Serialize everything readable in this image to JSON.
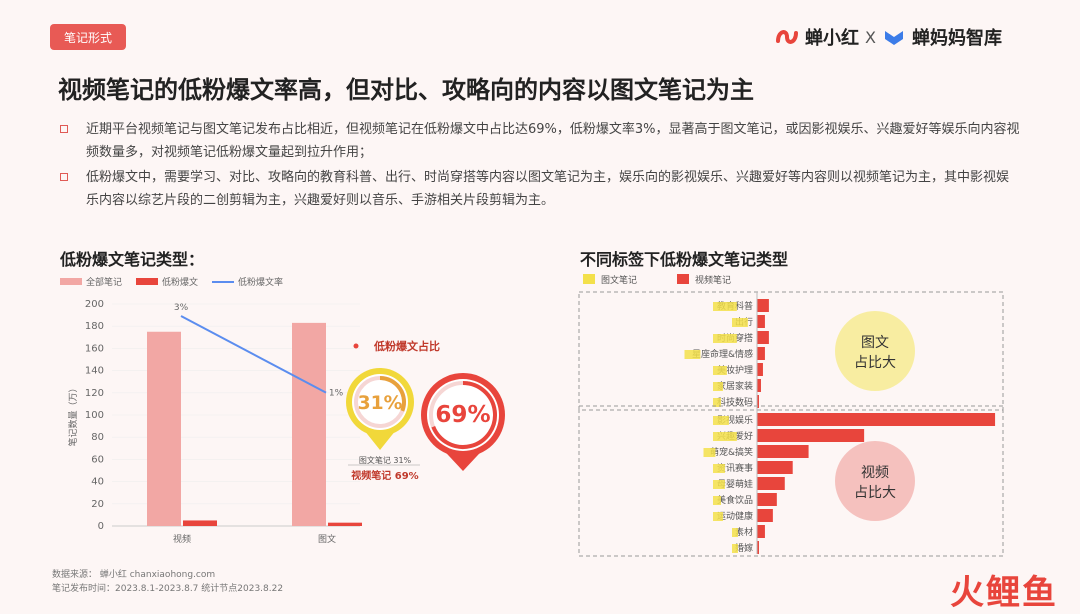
{
  "tag": "笔记形式",
  "brand": {
    "name1": "蝉小红",
    "x": "X",
    "name2": "蝉妈妈智库"
  },
  "title": "视频笔记的低粉爆文率高，但对比、攻略向的内容以图文笔记为主",
  "bullets": [
    "近期平台视频笔记与图文笔记发布占比相近，但视频笔记在低粉爆文中占比达69%，低粉爆文率3%，显著高于图文笔记，或因影视娱乐、兴趣爱好等娱乐向内容视频数量多，对视频笔记低粉爆文量起到拉升作用；",
    "低粉爆文中，需要学习、对比、攻略向的教育科普、出行、时尚穿搭等内容以图文笔记为主，娱乐向的影视娱乐、兴趣爱好等内容则以视频笔记为主，其中影视娱乐内容以综艺片段的二创剪辑为主，兴趣爱好则以音乐、手游相关片段剪辑为主。"
  ],
  "left_section_title": "低粉爆文笔记类型：",
  "right_section_title": "不同标签下低粉爆文笔记类型",
  "footer": {
    "source": "数据来源：  蝉小红  chanxiaohong.com",
    "time": "笔记发布时间：2023.8.1-2023.8.7  统计节点2023.8.22"
  },
  "watermark": "火鲤鱼",
  "colors": {
    "accent": "#e85a55",
    "all_notes": "#f2a7a4",
    "low_fan": "#e8453c",
    "rate_line": "#5b8def",
    "yellow": "#f3e04a"
  },
  "chart_data": [
    {
      "type": "bar",
      "categories": [
        "视频",
        "图文"
      ],
      "series": [
        {
          "name": "全部笔记",
          "values": [
            175,
            183
          ]
        },
        {
          "name": "低粉爆文",
          "values": [
            5,
            3
          ]
        },
        {
          "name": "低粉爆文率",
          "type": "line",
          "values": [
            3,
            1
          ]
        }
      ],
      "rate_labels": [
        "3%",
        "1%"
      ],
      "ylabel": "笔记数量（万）",
      "ylim": [
        0,
        200
      ],
      "yticks": [
        0,
        20,
        40,
        60,
        80,
        100,
        120,
        140,
        160,
        180,
        200
      ],
      "legend_position": "top-left"
    },
    {
      "type": "pie",
      "title": "低粉爆文占比",
      "slices": [
        {
          "name": "图文笔记",
          "value": 31,
          "label": "31%"
        },
        {
          "name": "视频笔记",
          "value": 69,
          "label": "69%"
        }
      ],
      "legend_lines": [
        "图文笔记 31%",
        "视频笔记 69%"
      ]
    },
    {
      "type": "bar",
      "orientation": "horizontal",
      "series_names": [
        "图文笔记",
        "视频笔记"
      ],
      "groups": [
        {
          "label": "图文\n占比大",
          "items": [
            {
              "category": "教育科普",
              "image_text": 5,
              "video": 3
            },
            {
              "category": "出行",
              "image_text": 3,
              "video": 2
            },
            {
              "category": "时尚穿搭",
              "image_text": 5,
              "video": 3
            },
            {
              "category": "星座命理&情感",
              "image_text": 3,
              "video": 2
            },
            {
              "category": "美妆护理",
              "image_text": 2.5,
              "video": 1.5
            },
            {
              "category": "家居家装",
              "image_text": 1.5,
              "video": 1
            },
            {
              "category": "科技数码",
              "image_text": 1,
              "video": 0.5
            }
          ]
        },
        {
          "label": "视频\n占比大",
          "items": [
            {
              "category": "影视娱乐",
              "image_text": 3,
              "video": 60
            },
            {
              "category": "兴趣爱好",
              "image_text": 5,
              "video": 27
            },
            {
              "category": "萌宠&搞笑",
              "image_text": 2,
              "video": 13
            },
            {
              "category": "资讯赛事",
              "image_text": 2,
              "video": 9
            },
            {
              "category": "母婴萌娃",
              "image_text": 2,
              "video": 7
            },
            {
              "category": "美食饮品",
              "image_text": 1,
              "video": 5
            },
            {
              "category": "运动健康",
              "image_text": 1.5,
              "video": 4
            },
            {
              "category": "素材",
              "image_text": 0.5,
              "video": 2
            },
            {
              "category": "婚嫁",
              "image_text": 0.5,
              "video": 0.5
            }
          ]
        }
      ],
      "xlim": [
        0,
        62
      ]
    }
  ]
}
